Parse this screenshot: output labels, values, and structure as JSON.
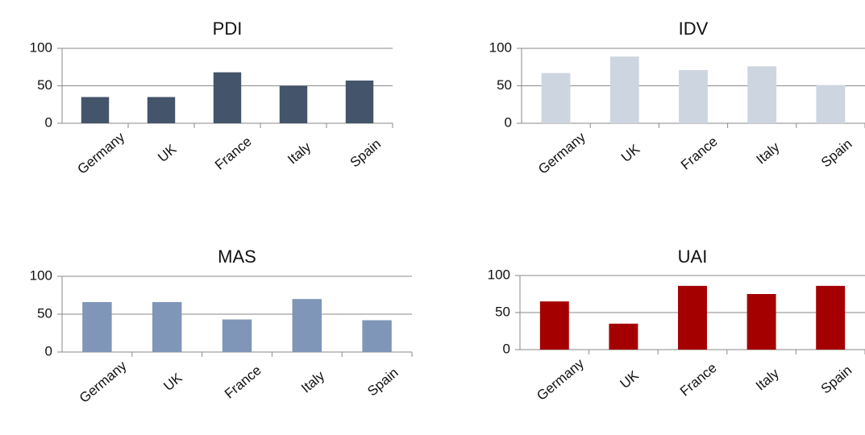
{
  "chart_data": [
    {
      "type": "bar",
      "title": "PDI",
      "categories": [
        "Germany",
        "UK",
        "France",
        "Italy",
        "Spain"
      ],
      "values": [
        35,
        35,
        68,
        50,
        57
      ],
      "ylim": [
        0,
        100
      ],
      "yticks": [
        "0",
        "50",
        "100"
      ],
      "grid": true,
      "color": "#44546a"
    },
    {
      "type": "bar",
      "title": "IDV",
      "categories": [
        "Germany",
        "UK",
        "France",
        "Italy",
        "Spain"
      ],
      "values": [
        67,
        89,
        71,
        76,
        51
      ],
      "ylim": [
        0,
        100
      ],
      "yticks": [
        "0",
        "50",
        "100"
      ],
      "grid": true,
      "color": "#cdd5e0"
    },
    {
      "type": "bar",
      "title": "MAS",
      "categories": [
        "Germany",
        "UK",
        "France",
        "Italy",
        "Spain"
      ],
      "values": [
        66,
        66,
        43,
        70,
        42
      ],
      "ylim": [
        0,
        100
      ],
      "yticks": [
        "0",
        "50",
        "100"
      ],
      "grid": true,
      "color": "#7f96b8"
    },
    {
      "type": "bar",
      "title": "UAI",
      "categories": [
        "Germany",
        "UK",
        "France",
        "Italy",
        "Spain"
      ],
      "values": [
        65,
        35,
        86,
        75,
        86
      ],
      "ylim": [
        0,
        100
      ],
      "yticks": [
        "0",
        "50",
        "100"
      ],
      "grid": true,
      "color": "#a50000"
    }
  ]
}
